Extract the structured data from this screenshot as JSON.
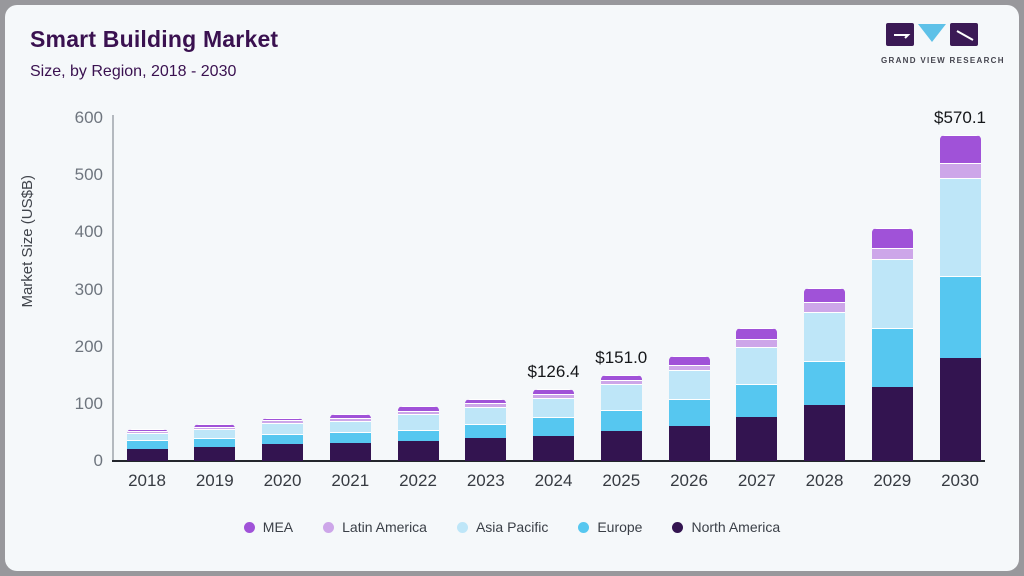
{
  "header": {
    "title": "Smart Building Market",
    "subtitle": "Size, by Region, 2018 - 2030",
    "logo_text": "GRAND VIEW RESEARCH"
  },
  "chart_data": {
    "type": "bar",
    "stacked": true,
    "title": "Smart Building Market",
    "subtitle": "Size, by Region, 2018 - 2030",
    "xlabel": "",
    "ylabel": "Market Size (US$B)",
    "ylim": [
      0,
      600
    ],
    "yticks": [
      0,
      100,
      200,
      300,
      400,
      500,
      600
    ],
    "grid": false,
    "legend_position": "bottom",
    "categories": [
      "2018",
      "2019",
      "2020",
      "2021",
      "2022",
      "2023",
      "2024",
      "2025",
      "2026",
      "2027",
      "2028",
      "2029",
      "2030"
    ],
    "series": [
      {
        "name": "North America",
        "color": "#331450",
        "values": [
          21,
          24,
          29,
          32,
          35,
          40,
          44,
          52,
          61,
          77,
          98,
          129,
          180
        ]
      },
      {
        "name": "Europe",
        "color": "#56c7f0",
        "values": [
          15,
          16,
          18,
          19,
          20,
          25,
          33,
          37,
          48,
          58,
          77,
          104,
          143
        ]
      },
      {
        "name": "Asia Pacific",
        "color": "#bee6f8",
        "values": [
          13,
          16,
          20,
          19,
          28,
          30,
          34,
          45,
          50,
          65,
          86,
          121,
          172
        ]
      },
      {
        "name": "Latin America",
        "color": "#cda6e9",
        "values": [
          3,
          4,
          4,
          6,
          5,
          6,
          6,
          7,
          9,
          14,
          17,
          19,
          26.1
        ]
      },
      {
        "name": "MEA",
        "color": "#a052d8",
        "values": [
          4,
          5,
          5,
          7,
          8,
          7,
          9.4,
          10,
          16,
          18,
          24,
          34,
          49
        ]
      }
    ],
    "totals": [
      56,
      65,
      76,
      83,
      96,
      108,
      126.4,
      151.0,
      184,
      232,
      302,
      407,
      570.1
    ],
    "bar_labels": {
      "2024": "$126.4",
      "2025": "$151.0",
      "2030": "$570.1"
    },
    "legend": [
      {
        "label": "MEA",
        "color": "#a052d8"
      },
      {
        "label": "Latin America",
        "color": "#cda6e9"
      },
      {
        "label": "Asia Pacific",
        "color": "#bee6f8"
      },
      {
        "label": "Europe",
        "color": "#56c7f0"
      },
      {
        "label": "North America",
        "color": "#331450"
      }
    ]
  },
  "colors": {
    "card_bg": "#f5f8fa",
    "frame_bg": "#98989c",
    "title": "#3a1150",
    "axis_line_x": "#23262c",
    "axis_line_y": "#b4b9bf",
    "ytick_text": "#6e757e",
    "xtick_text": "#373b42",
    "logo_block": "#3b1a55",
    "logo_triangle": "#5ec1e8"
  }
}
